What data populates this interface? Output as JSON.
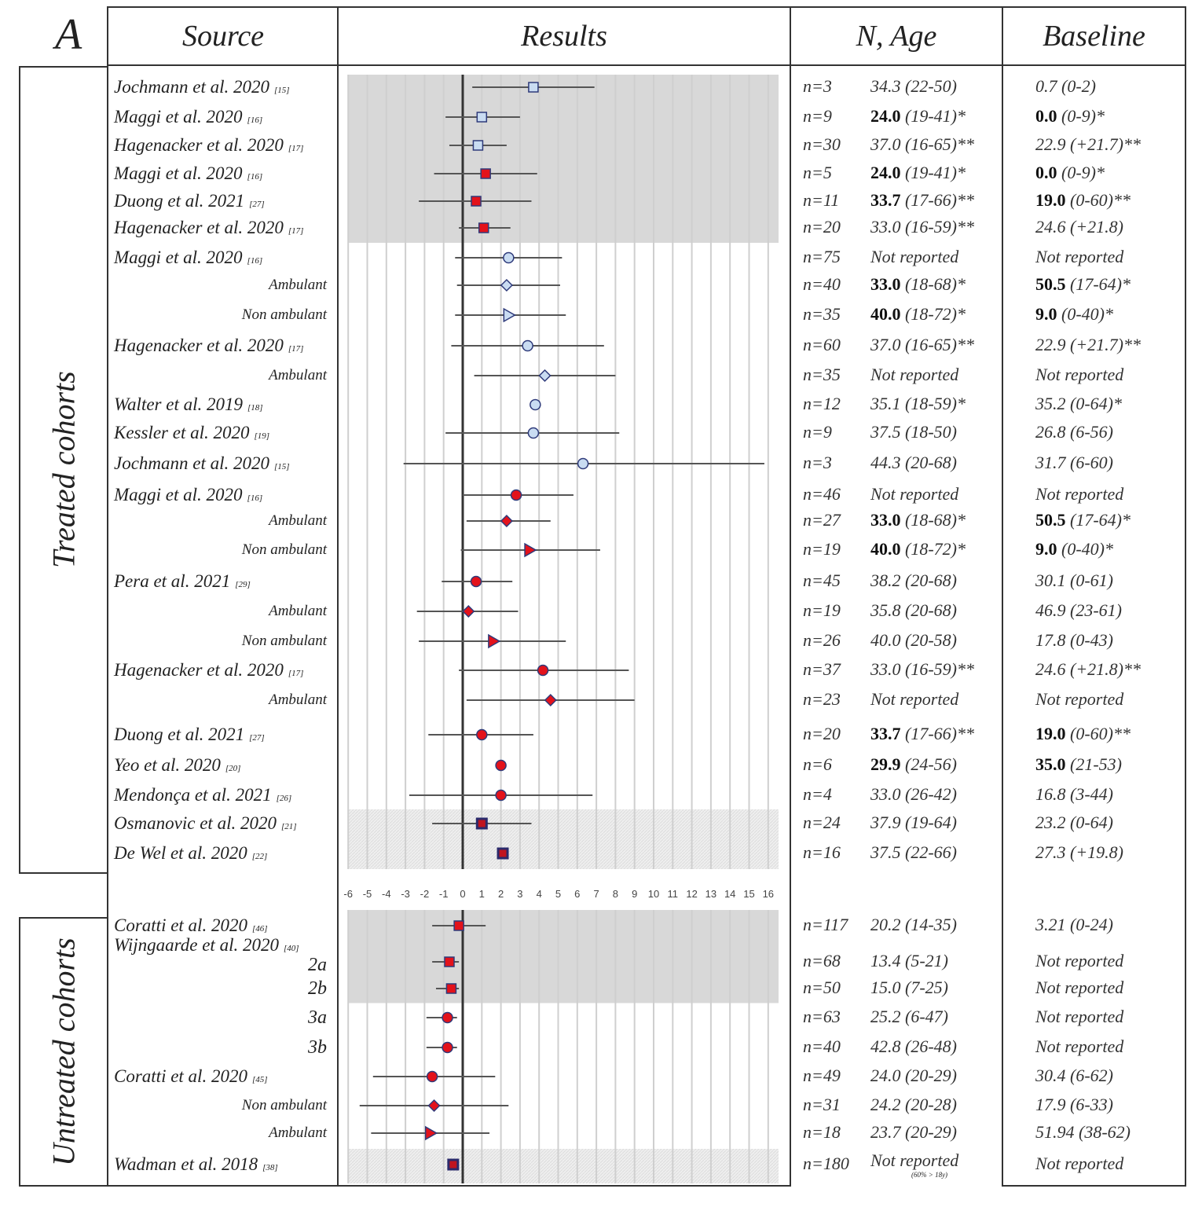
{
  "panel_label": "A",
  "headers": {
    "source": "Source",
    "results": "Results",
    "n_age": "N, Age",
    "baseline": "Baseline"
  },
  "groups": {
    "treated": "Treated cohorts",
    "untreated": "Untreated cohorts"
  },
  "colors": {
    "treated_light": "#c9dcf2",
    "red": "#e3121b",
    "marker_stroke": "#2e3a7a",
    "shade_grey": "#d8d8d8",
    "shade_hatched": "#ececec"
  },
  "chart_data": {
    "type": "forest",
    "x_ticks": [
      -6,
      -5,
      -4,
      -3,
      -2,
      -1,
      0,
      1,
      2,
      3,
      4,
      5,
      6,
      7,
      8,
      9,
      10,
      11,
      12,
      13,
      14,
      15,
      16
    ],
    "xlim": [
      -6,
      16
    ],
    "reference_line": 0,
    "grid": true,
    "treated": [
      {
        "source": "Jochmann et al. 2020",
        "ref": "[15]",
        "sub": "",
        "marker": "square",
        "fill": "light",
        "est": 3.7,
        "lo": 0.5,
        "hi": 6.9,
        "n": "n=3",
        "age_b": "",
        "age": "34.3 (22-50)",
        "base_b": "",
        "base": "0.7 (0-2)",
        "shade": "grey"
      },
      {
        "source": "Maggi et al. 2020",
        "ref": "[16]",
        "sub": "",
        "marker": "square",
        "fill": "light",
        "est": 1.0,
        "lo": -0.9,
        "hi": 3.0,
        "n": "n=9",
        "age_b": "24.0",
        "age": " (19-41)*",
        "base_b": "0.0",
        "base": " (0-9)*",
        "shade": "grey"
      },
      {
        "source": "Hagenacker et al. 2020",
        "ref": "[17]",
        "sub": "",
        "marker": "square",
        "fill": "light",
        "est": 0.8,
        "lo": -0.7,
        "hi": 2.3,
        "n": "n=30",
        "age_b": "",
        "age": "37.0 (16-65)**",
        "base_b": "",
        "base": "22.9 (+21.7)**",
        "shade": "grey"
      },
      {
        "source": "Maggi et al. 2020",
        "ref": "[16]",
        "sub": "",
        "marker": "square",
        "fill": "red",
        "est": 1.2,
        "lo": -1.5,
        "hi": 3.9,
        "n": "n=5",
        "age_b": "24.0",
        "age": " (19-41)*",
        "base_b": "0.0",
        "base": " (0-9)*",
        "shade": "grey"
      },
      {
        "source": "Duong et al. 2021",
        "ref": "[27]",
        "sub": "",
        "marker": "square",
        "fill": "red",
        "est": 0.7,
        "lo": -2.3,
        "hi": 3.6,
        "n": "n=11",
        "age_b": "33.7",
        "age": " (17-66)**",
        "base_b": "19.0",
        "base": " (0-60)**",
        "shade": "grey"
      },
      {
        "source": "Hagenacker et al. 2020",
        "ref": "[17]",
        "sub": "",
        "marker": "square",
        "fill": "red",
        "est": 1.1,
        "lo": -0.2,
        "hi": 2.5,
        "n": "n=20",
        "age_b": "",
        "age": "33.0 (16-59)**",
        "base_b": "",
        "base": "24.6 (+21.8)",
        "shade": "grey"
      },
      {
        "source": "Maggi et al. 2020",
        "ref": "[16]",
        "sub": "",
        "marker": "circle",
        "fill": "light",
        "est": 2.4,
        "lo": -0.4,
        "hi": 5.2,
        "n": "n=75",
        "age_b": "",
        "age": "Not reported",
        "base_b": "",
        "base": "Not reported",
        "shade": ""
      },
      {
        "source": "",
        "ref": "",
        "sub": "Ambulant",
        "marker": "diamond",
        "fill": "light",
        "est": 2.3,
        "lo": -0.3,
        "hi": 5.1,
        "n": "n=40",
        "age_b": "33.0",
        "age": " (18-68)*",
        "base_b": "50.5",
        "base": " (17-64)*",
        "shade": ""
      },
      {
        "source": "",
        "ref": "",
        "sub": "Non ambulant",
        "marker": "triangle",
        "fill": "light",
        "est": 2.4,
        "lo": -0.4,
        "hi": 5.4,
        "n": "n=35",
        "age_b": "40.0",
        "age": " (18-72)*",
        "base_b": "9.0",
        "base": " (0-40)*",
        "shade": ""
      },
      {
        "source": "Hagenacker et al. 2020",
        "ref": "[17]",
        "sub": "",
        "marker": "circle",
        "fill": "light",
        "est": 3.4,
        "lo": -0.6,
        "hi": 7.4,
        "n": "n=60",
        "age_b": "",
        "age": "37.0 (16-65)**",
        "base_b": "",
        "base": "22.9 (+21.7)**",
        "shade": ""
      },
      {
        "source": "",
        "ref": "",
        "sub": "Ambulant",
        "marker": "diamond",
        "fill": "light",
        "est": 4.3,
        "lo": 0.6,
        "hi": 8.0,
        "n": "n=35",
        "age_b": "",
        "age": "Not reported",
        "base_b": "",
        "base": "Not reported",
        "shade": ""
      },
      {
        "source": "Walter et al. 2019",
        "ref": "[18]",
        "sub": "",
        "marker": "circle",
        "fill": "light",
        "est": 3.8,
        "lo": null,
        "hi": null,
        "n": "n=12",
        "age_b": "",
        "age": "35.1 (18-59)*",
        "base_b": "",
        "base": "35.2 (0-64)*",
        "shade": ""
      },
      {
        "source": "Kessler et al. 2020",
        "ref": "[19]",
        "sub": "",
        "marker": "circle",
        "fill": "light",
        "est": 3.7,
        "lo": -0.9,
        "hi": 8.2,
        "n": "n=9",
        "age_b": "",
        "age": "37.5 (18-50)",
        "base_b": "",
        "base": "26.8 (6-56)",
        "shade": ""
      },
      {
        "source": "Jochmann et al. 2020",
        "ref": "[15]",
        "sub": "",
        "marker": "circle",
        "fill": "light",
        "est": 6.3,
        "lo": -3.1,
        "hi": 15.8,
        "n": "n=3",
        "age_b": "",
        "age": "44.3 (20-68)",
        "base_b": "",
        "base": "31.7 (6-60)",
        "shade": ""
      },
      {
        "source": "Maggi et al. 2020",
        "ref": "[16]",
        "sub": "",
        "marker": "circle",
        "fill": "red",
        "est": 2.8,
        "lo": 0.0,
        "hi": 5.8,
        "n": "n=46",
        "age_b": "",
        "age": "Not reported",
        "base_b": "",
        "base": "Not reported",
        "shade": ""
      },
      {
        "source": "",
        "ref": "",
        "sub": "Ambulant",
        "marker": "diamond",
        "fill": "red",
        "est": 2.3,
        "lo": 0.2,
        "hi": 4.6,
        "n": "n=27",
        "age_b": "33.0",
        "age": " (18-68)*",
        "base_b": "50.5",
        "base": " (17-64)*",
        "shade": ""
      },
      {
        "source": "",
        "ref": "",
        "sub": "Non ambulant",
        "marker": "triangle",
        "fill": "red",
        "est": 3.5,
        "lo": -0.1,
        "hi": 7.2,
        "n": "n=19",
        "age_b": "40.0",
        "age": " (18-72)*",
        "base_b": "9.0",
        "base": " (0-40)*",
        "shade": ""
      },
      {
        "source": "Pera et al. 2021",
        "ref": "[29]",
        "sub": "",
        "marker": "circle",
        "fill": "red",
        "est": 0.7,
        "lo": -1.1,
        "hi": 2.6,
        "n": "n=45",
        "age_b": "",
        "age": "38.2 (20-68)",
        "base_b": "",
        "base": "30.1 (0-61)",
        "shade": ""
      },
      {
        "source": "",
        "ref": "",
        "sub": "Ambulant",
        "marker": "diamond",
        "fill": "red",
        "est": 0.3,
        "lo": -2.4,
        "hi": 2.9,
        "n": "n=19",
        "age_b": "",
        "age": "35.8 (20-68)",
        "base_b": "",
        "base": "46.9 (23-61)",
        "shade": ""
      },
      {
        "source": "",
        "ref": "",
        "sub": "Non ambulant",
        "marker": "triangle",
        "fill": "red",
        "est": 1.6,
        "lo": -2.3,
        "hi": 5.4,
        "n": "n=26",
        "age_b": "",
        "age": "40.0 (20-58)",
        "base_b": "",
        "base": "17.8 (0-43)",
        "shade": ""
      },
      {
        "source": "Hagenacker et al. 2020",
        "ref": "[17]",
        "sub": "",
        "marker": "circle",
        "fill": "red",
        "est": 4.2,
        "lo": -0.2,
        "hi": 8.7,
        "n": "n=37",
        "age_b": "",
        "age": "33.0 (16-59)**",
        "base_b": "",
        "base": "24.6 (+21.8)**",
        "shade": ""
      },
      {
        "source": "",
        "ref": "",
        "sub": "Ambulant",
        "marker": "diamond",
        "fill": "red",
        "est": 4.6,
        "lo": 0.2,
        "hi": 9.0,
        "n": "n=23",
        "age_b": "",
        "age": "Not reported",
        "base_b": "",
        "base": "Not reported",
        "shade": ""
      },
      {
        "source": "Duong et al. 2021",
        "ref": "[27]",
        "sub": "",
        "marker": "circle",
        "fill": "red",
        "est": 1.0,
        "lo": -1.8,
        "hi": 3.7,
        "n": "n=20",
        "age_b": "33.7",
        "age": " (17-66)**",
        "base_b": "19.0",
        "base": " (0-60)**",
        "shade": ""
      },
      {
        "source": "Yeo et al. 2020",
        "ref": "[20]",
        "sub": "",
        "marker": "circle",
        "fill": "red",
        "est": 2.0,
        "lo": null,
        "hi": null,
        "n": "n=6",
        "age_b": "29.9",
        "age": " (24-56)",
        "base_b": "35.0",
        "base": " (21-53)",
        "shade": ""
      },
      {
        "source": "Mendonça et al. 2021",
        "ref": "[26]",
        "sub": "",
        "marker": "circle",
        "fill": "red",
        "est": 2.0,
        "lo": -2.8,
        "hi": 6.8,
        "n": "n=4",
        "age_b": "",
        "age": "33.0 (26-42)",
        "base_b": "",
        "base": "16.8 (3-44)",
        "shade": ""
      },
      {
        "source": "Osmanovic et al. 2020",
        "ref": "[21]",
        "sub": "",
        "marker": "dark-square",
        "fill": "red",
        "est": 1.0,
        "lo": -1.6,
        "hi": 3.6,
        "n": "n=24",
        "age_b": "",
        "age": "37.9 (19-64)",
        "base_b": "",
        "base": "23.2 (0-64)",
        "shade": "hatched"
      },
      {
        "source": "De Wel et al. 2020",
        "ref": "[22]",
        "sub": "",
        "marker": "dark-square",
        "fill": "red",
        "est": 2.1,
        "lo": null,
        "hi": null,
        "n": "n=16",
        "age_b": "",
        "age": "37.5 (22-66)",
        "base_b": "",
        "base": "27.3 (+19.8)",
        "shade": "hatched"
      }
    ],
    "untreated": [
      {
        "source": "Coratti et al. 2020",
        "ref": "[46]",
        "sub": "",
        "marker": "square",
        "fill": "red",
        "est": -0.2,
        "lo": -1.6,
        "hi": 1.2,
        "n": "n=117",
        "age_b": "",
        "age": "20.2 (14-35)",
        "base_b": "",
        "base": "3.21 (0-24)",
        "shade": "grey"
      },
      {
        "source": "Wijngaarde et al. 2020",
        "ref": "[40]",
        "sub": "2a",
        "marker": "square",
        "fill": "red",
        "est": -0.7,
        "lo": -1.6,
        "hi": -0.2,
        "n": "n=68",
        "age_b": "",
        "age": "13.4 (5-21)",
        "base_b": "",
        "base": "Not reported",
        "shade": "grey"
      },
      {
        "source": "",
        "ref": "",
        "sub": "2b",
        "marker": "square",
        "fill": "red",
        "est": -0.6,
        "lo": -1.4,
        "hi": -0.2,
        "n": "n=50",
        "age_b": "",
        "age": "15.0 (7-25)",
        "base_b": "",
        "base": "Not reported",
        "shade": "grey"
      },
      {
        "source": "",
        "ref": "",
        "sub": "3a",
        "marker": "circle",
        "fill": "red",
        "est": -0.8,
        "lo": -1.9,
        "hi": -0.3,
        "n": "n=63",
        "age_b": "",
        "age": "25.2 (6-47)",
        "base_b": "",
        "base": "Not reported",
        "shade": ""
      },
      {
        "source": "",
        "ref": "",
        "sub": "3b",
        "marker": "circle",
        "fill": "red",
        "est": -0.8,
        "lo": -1.9,
        "hi": -0.3,
        "n": "n=40",
        "age_b": "",
        "age": "42.8 (26-48)",
        "base_b": "",
        "base": "Not reported",
        "shade": ""
      },
      {
        "source": "Coratti et al. 2020",
        "ref": "[45]",
        "sub": "",
        "marker": "circle",
        "fill": "red",
        "est": -1.6,
        "lo": -4.7,
        "hi": 1.7,
        "n": "n=49",
        "age_b": "",
        "age": "24.0 (20-29)",
        "base_b": "",
        "base": "30.4 (6-62)",
        "shade": ""
      },
      {
        "source": "",
        "ref": "",
        "sub": "Non ambulant",
        "marker": "diamond",
        "fill": "red",
        "est": -1.5,
        "lo": -5.4,
        "hi": 2.4,
        "n": "n=31",
        "age_b": "",
        "age": "24.2 (20-28)",
        "base_b": "",
        "base": "17.9 (6-33)",
        "shade": ""
      },
      {
        "source": "",
        "ref": "",
        "sub": "Ambulant",
        "marker": "triangle",
        "fill": "red",
        "est": -1.7,
        "lo": -4.8,
        "hi": 1.4,
        "n": "n=18",
        "age_b": "",
        "age": "23.7 (20-29)",
        "base_b": "",
        "base": "51.94 (38-62)",
        "shade": ""
      },
      {
        "source": "Wadman et al. 2018",
        "ref": "[38]",
        "sub": "",
        "marker": "dark-square",
        "fill": "red",
        "est": -0.5,
        "lo": null,
        "hi": null,
        "n": "n=180",
        "age_b": "",
        "age": "Not reported",
        "age_note": "(60% > 18y)",
        "base_b": "",
        "base": "Not reported",
        "shade": "hatched"
      }
    ]
  }
}
